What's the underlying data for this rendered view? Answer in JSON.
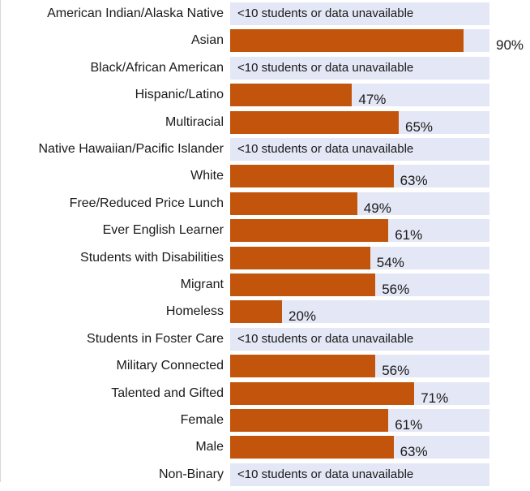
{
  "chart_data": {
    "type": "bar",
    "orientation": "horizontal",
    "xlim": [
      0,
      100
    ],
    "unavailable_label": "<10 students or data unavailable",
    "colors": {
      "bar": "#c2540b",
      "track": "#e4e7f5"
    },
    "categories": [
      "American Indian/Alaska Native",
      "Asian",
      "Black/African American",
      "Hispanic/Latino",
      "Multiracial",
      "Native Hawaiian/Pacific Islander",
      "White",
      "Free/Reduced Price Lunch",
      "Ever English Learner",
      "Students with Disabilities",
      "Migrant",
      "Homeless",
      "Students in Foster Care",
      "Military Connected",
      "Talented and Gifted",
      "Female",
      "Male",
      "Non-Binary"
    ],
    "values": [
      null,
      90,
      null,
      47,
      65,
      null,
      63,
      49,
      61,
      54,
      56,
      20,
      null,
      56,
      71,
      61,
      63,
      null
    ],
    "value_labels": [
      "",
      "90%",
      "",
      "47%",
      "65%",
      "",
      "63%",
      "49%",
      "61%",
      "54%",
      "56%",
      "20%",
      "",
      "56%",
      "71%",
      "61%",
      "63%",
      ""
    ]
  }
}
